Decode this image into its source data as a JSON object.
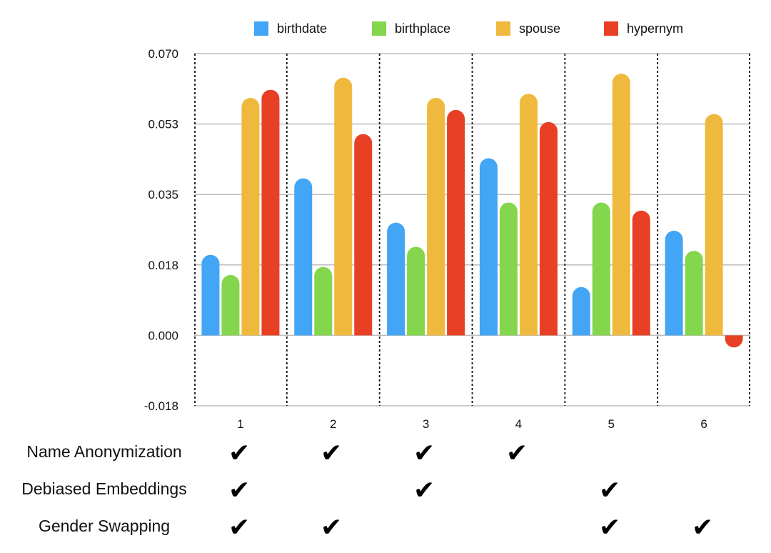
{
  "chart_data": {
    "type": "bar",
    "categories": [
      "1",
      "2",
      "3",
      "4",
      "5",
      "6"
    ],
    "series": [
      {
        "name": "birthdate",
        "color": "#42A5F5",
        "values": [
          0.02,
          0.039,
          0.028,
          0.044,
          0.012,
          0.026
        ]
      },
      {
        "name": "birthplace",
        "color": "#84D64C",
        "values": [
          0.015,
          0.017,
          0.022,
          0.033,
          0.033,
          0.021
        ]
      },
      {
        "name": "spouse",
        "color": "#EFB93E",
        "values": [
          0.059,
          0.064,
          0.059,
          0.06,
          0.065,
          0.055
        ]
      },
      {
        "name": "hypernym",
        "color": "#E84025",
        "values": [
          0.061,
          0.05,
          0.056,
          0.053,
          0.031,
          -0.003
        ]
      }
    ],
    "yticks": [
      "0.070",
      "0.053",
      "0.035",
      "0.018",
      "0.000",
      "-0.018"
    ],
    "ylim": [
      -0.0175,
      0.07
    ],
    "grid": true,
    "legend": "top",
    "title": "",
    "xlabel": "",
    "ylabel": ""
  },
  "conditions": [
    {
      "label": "Name Anonymization",
      "checks": [
        true,
        true,
        true,
        true,
        false,
        false
      ]
    },
    {
      "label": "Debiased Embeddings",
      "checks": [
        true,
        false,
        true,
        false,
        true,
        false
      ]
    },
    {
      "label": "Gender Swapping",
      "checks": [
        true,
        true,
        false,
        false,
        true,
        true
      ]
    }
  ],
  "check_glyph": "✔"
}
